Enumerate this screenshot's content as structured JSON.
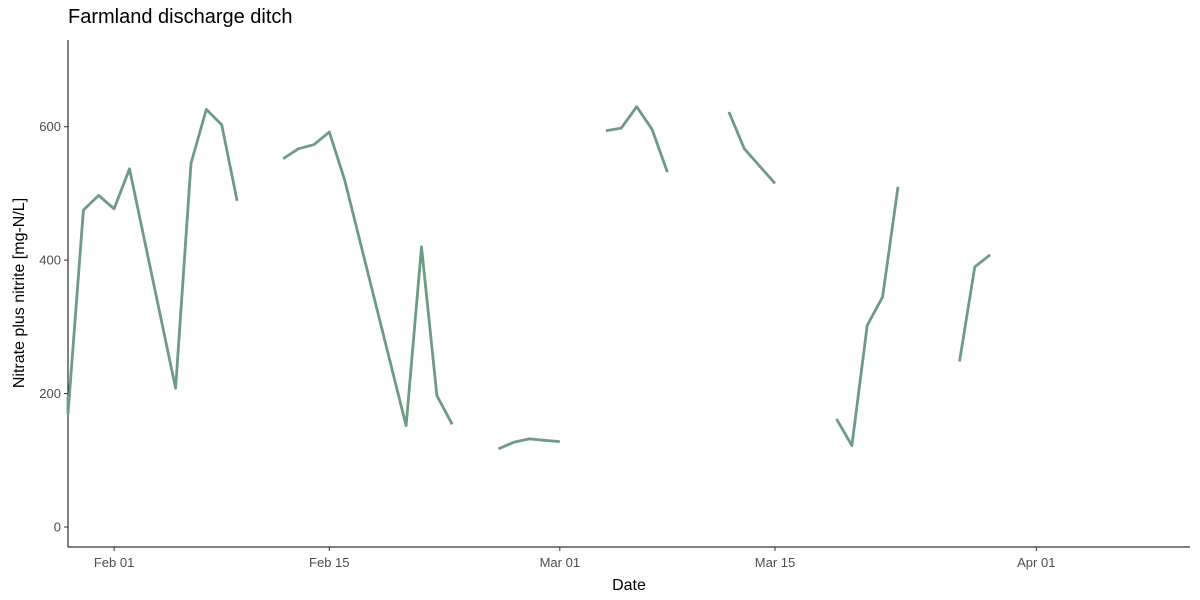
{
  "chart_data": {
    "type": "line",
    "title": "Farmland discharge ditch",
    "xlabel": "Date",
    "ylabel": "Nitrate plus nitrite [mg-N/L]",
    "xlim": [
      "2024-01-29",
      "2024-04-11"
    ],
    "ylim": [
      -30,
      730
    ],
    "x_ticks": [
      {
        "date": "2024-02-01",
        "label": "Feb 01"
      },
      {
        "date": "2024-02-15",
        "label": "Feb 15"
      },
      {
        "date": "2024-03-01",
        "label": "Mar 01"
      },
      {
        "date": "2024-03-15",
        "label": "Mar 15"
      },
      {
        "date": "2024-04-01",
        "label": "Apr 01"
      }
    ],
    "y_ticks": [
      0,
      200,
      400,
      600
    ],
    "grid": false,
    "line_color": "#6f9a86",
    "series": [
      {
        "segments": [
          [
            [
              "2024-01-29",
              195
            ],
            [
              "2024-01-29",
              170
            ],
            [
              "2024-01-30",
              475
            ],
            [
              "2024-01-31",
              497
            ],
            [
              "2024-02-01",
              477
            ],
            [
              "2024-02-02",
              537
            ],
            [
              "2024-02-05",
              208
            ],
            [
              "2024-02-06",
              545
            ],
            [
              "2024-02-07",
              626
            ],
            [
              "2024-02-08",
              603
            ],
            [
              "2024-02-09",
              489
            ]
          ],
          [
            [
              "2024-02-12",
              552
            ],
            [
              "2024-02-13",
              567
            ],
            [
              "2024-02-14",
              573
            ],
            [
              "2024-02-15",
              592
            ],
            [
              "2024-02-16",
              520
            ],
            [
              "2024-02-20",
              152
            ],
            [
              "2024-02-21",
              420
            ],
            [
              "2024-02-22",
              197
            ],
            [
              "2024-02-23",
              154
            ]
          ],
          [
            [
              "2024-02-26",
              117
            ],
            [
              "2024-02-27",
              127
            ],
            [
              "2024-02-28",
              132
            ],
            [
              "2024-02-29",
              130
            ],
            [
              "2024-03-01",
              128
            ]
          ],
          [
            [
              "2024-03-04",
              594
            ],
            [
              "2024-03-05",
              598
            ],
            [
              "2024-03-06",
              630
            ],
            [
              "2024-03-07",
              596
            ],
            [
              "2024-03-08",
              532
            ]
          ],
          [
            [
              "2024-03-12",
              622
            ],
            [
              "2024-03-13",
              567
            ],
            [
              "2024-03-15",
              515
            ]
          ],
          [
            [
              "2024-03-19",
              162
            ],
            [
              "2024-03-20",
              122
            ],
            [
              "2024-03-21",
              302
            ],
            [
              "2024-03-22",
              345
            ],
            [
              "2024-03-23",
              510
            ]
          ],
          [
            [
              "2024-03-27",
              248
            ],
            [
              "2024-03-28",
              390
            ],
            [
              "2024-03-29",
              408
            ]
          ]
        ]
      }
    ]
  }
}
